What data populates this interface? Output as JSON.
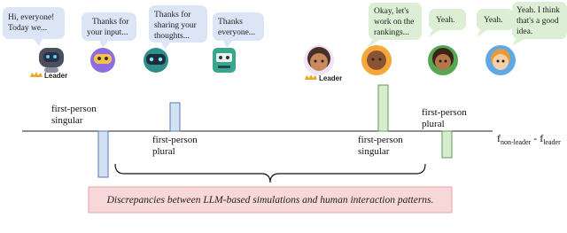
{
  "bubbles": [
    {
      "lines": [
        "Hi, everyone!",
        "Today we..."
      ]
    },
    {
      "lines": [
        "Thanks for",
        "your input..."
      ]
    },
    {
      "lines": [
        "Thanks for",
        "sharing your",
        "thoughts..."
      ]
    },
    {
      "lines": [
        "Thanks",
        "everyone..."
      ]
    },
    {
      "lines": [
        "Okay, let's",
        "work on the",
        "rankings..."
      ]
    },
    {
      "lines": [
        "Yeah."
      ]
    },
    {
      "lines": [
        "Yeah."
      ]
    },
    {
      "lines": [
        "Yeah. I think",
        "that's a good",
        "idea."
      ]
    }
  ],
  "leader_labels": [
    "Leader",
    "Leader"
  ],
  "bar_labels": [
    {
      "lines": [
        "first-person",
        "singular"
      ]
    },
    {
      "lines": [
        "first-person",
        "plural"
      ]
    },
    {
      "lines": [
        "first-person",
        "singular"
      ]
    },
    {
      "lines": [
        "first-person",
        "plural"
      ]
    }
  ],
  "axis_label": {
    "f_a": "f",
    "sub_a": "non-leader",
    "minus": " - ",
    "f_b": "f",
    "sub_b": "leader"
  },
  "note": "Discrepancies between LLM-based simulations and human interaction patterns."
}
